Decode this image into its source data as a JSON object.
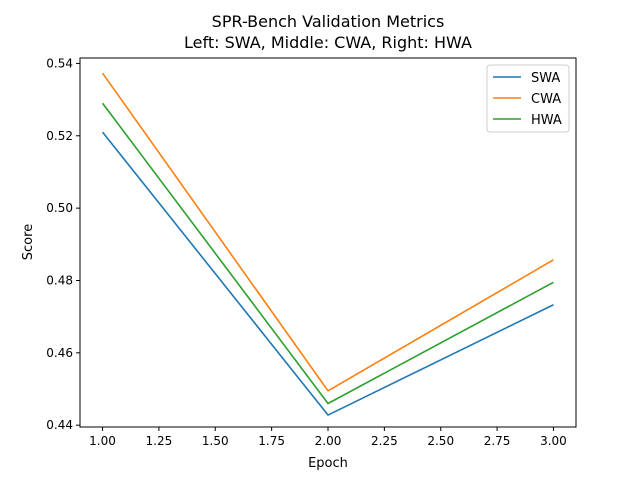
{
  "chart_data": {
    "type": "line",
    "title": "SPR-Bench Validation Metrics",
    "subtitle": "Left: SWA, Middle: CWA, Right: HWA",
    "xlabel": "Epoch",
    "ylabel": "Score",
    "xlim": [
      0.9,
      3.1
    ],
    "ylim": [
      0.4395,
      0.5415
    ],
    "xticks": [
      "1.00",
      "1.25",
      "1.50",
      "1.75",
      "2.00",
      "2.25",
      "2.50",
      "2.75",
      "3.00"
    ],
    "yticks": [
      "0.44",
      "0.46",
      "0.48",
      "0.50",
      "0.52",
      "0.54"
    ],
    "grid": false,
    "legend_position": "top-right",
    "x": [
      1,
      2,
      3
    ],
    "series": [
      {
        "name": "SWA",
        "color": "#1f77b4",
        "values": [
          0.521,
          0.4428,
          0.4733
        ]
      },
      {
        "name": "CWA",
        "color": "#ff7f0e",
        "values": [
          0.5373,
          0.4495,
          0.4857
        ]
      },
      {
        "name": "HWA",
        "color": "#2ca02c",
        "values": [
          0.529,
          0.446,
          0.4795
        ]
      }
    ]
  }
}
